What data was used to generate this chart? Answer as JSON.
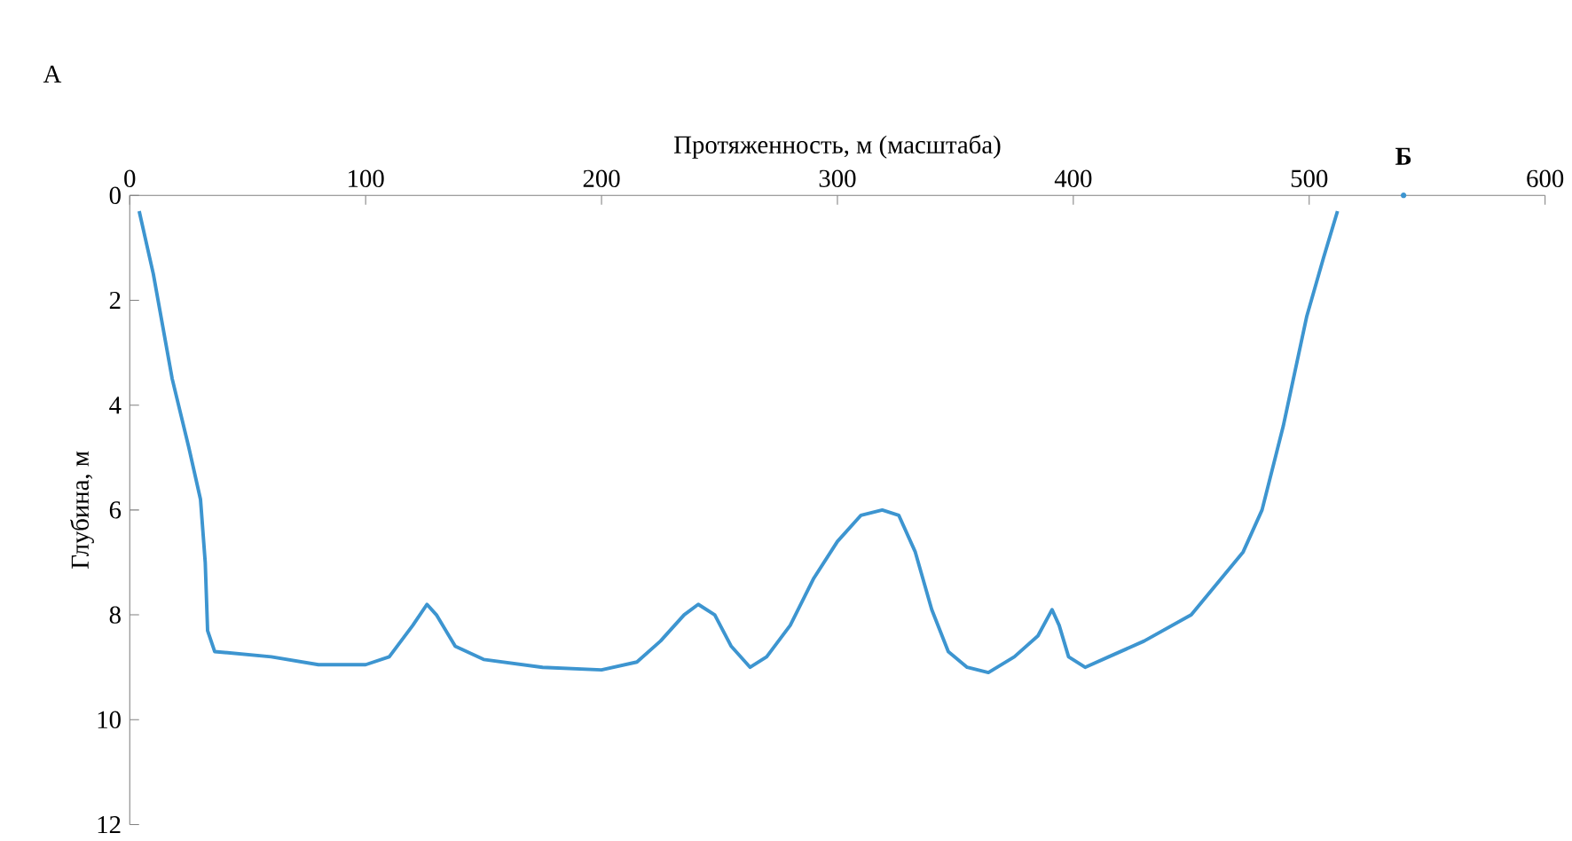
{
  "chart_data": {
    "type": "line",
    "xlabel": "Протяженность, м (масштаба)",
    "ylabel": "Глубина, м",
    "annotations": [
      "А",
      {
        "text": "Б",
        "x": 540,
        "y": 0
      }
    ],
    "xlim": [
      0,
      600
    ],
    "xticks": [
      0,
      100,
      200,
      300,
      400,
      500,
      600
    ],
    "ylim": [
      12,
      0
    ],
    "yticks": [
      0,
      2,
      4,
      6,
      8,
      10,
      12
    ],
    "grid": false,
    "marker": "none",
    "line_style": "solid",
    "series": [
      {
        "color": "#3d95d0",
        "x": [
          4,
          10,
          18,
          25,
          30,
          32,
          33,
          36,
          60,
          80,
          100,
          110,
          120,
          126,
          130,
          138,
          150,
          175,
          200,
          215,
          225,
          235,
          241,
          248,
          255,
          263,
          270,
          280,
          290,
          300,
          310,
          319,
          326,
          333,
          340,
          347,
          355,
          364,
          375,
          385,
          391,
          394,
          398,
          405,
          415,
          430,
          450,
          472,
          480,
          489,
          499,
          506,
          512
        ],
        "values": [
          0.3,
          1.5,
          3.5,
          4.8,
          5.8,
          7.0,
          8.3,
          8.7,
          8.8,
          8.95,
          8.95,
          8.8,
          8.2,
          7.8,
          8.0,
          8.6,
          8.85,
          9.0,
          9.05,
          8.9,
          8.5,
          8.0,
          7.8,
          8.0,
          8.6,
          9.0,
          8.8,
          8.2,
          7.3,
          6.6,
          6.1,
          6.0,
          6.1,
          6.8,
          7.9,
          8.7,
          9.0,
          9.1,
          8.8,
          8.4,
          7.9,
          8.2,
          8.8,
          9.0,
          8.8,
          8.5,
          8.0,
          6.8,
          6.0,
          4.4,
          2.3,
          1.2,
          0.3
        ]
      }
    ]
  }
}
